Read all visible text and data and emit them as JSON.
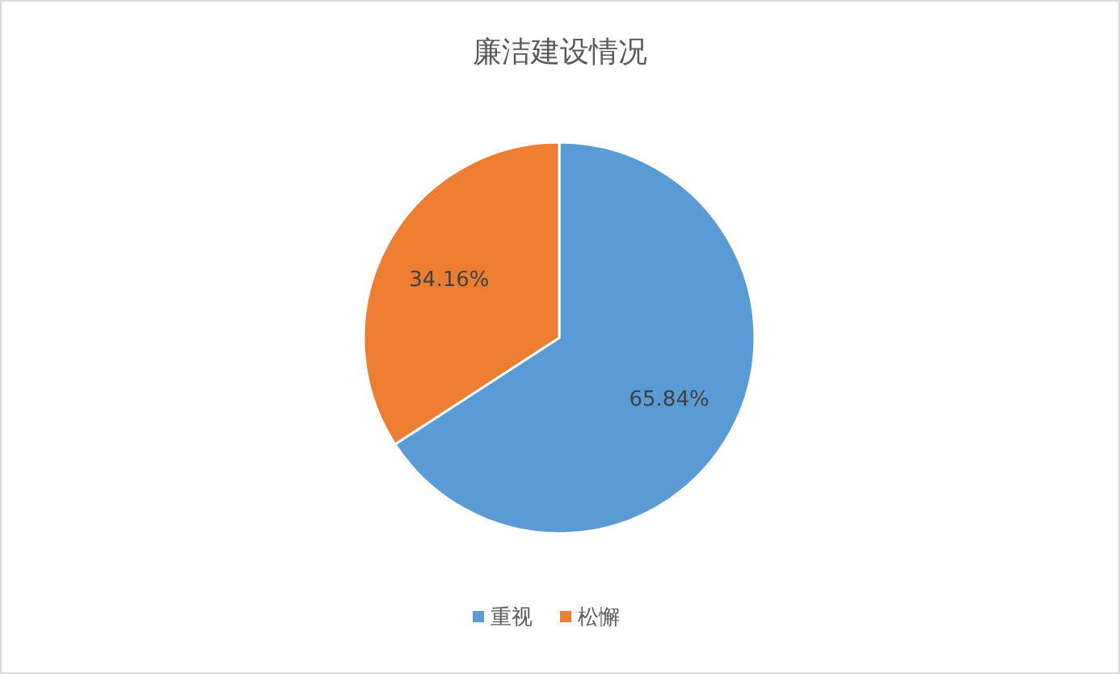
{
  "chart_data": {
    "type": "pie",
    "title": "廉洁建设情况",
    "categories": [
      "重视",
      "松懈"
    ],
    "values": [
      65.84,
      34.16
    ],
    "colors": [
      "#5b9bd5",
      "#ed7d31"
    ],
    "value_labels": [
      "65.84%",
      "34.16%"
    ],
    "legend": "bottom"
  }
}
